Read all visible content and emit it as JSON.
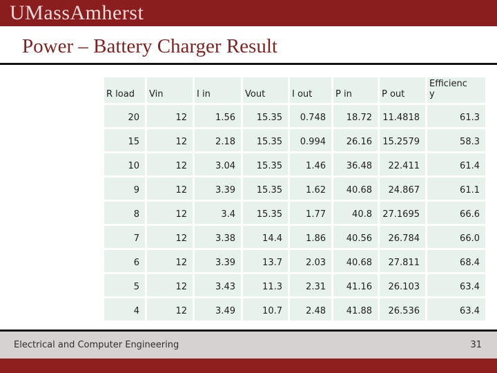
{
  "slide": {
    "logo_text": "UMassAmherst",
    "title": "Power – Battery Charger Result",
    "footer_left": "Electrical and Computer Engineering",
    "page_number": "31"
  },
  "colors": {
    "banner_maroon": "#8a1d1d",
    "footer_maroon": "#8f1f1f",
    "title_maroon": "#7e2523",
    "logo_pink": "#f2d9d9",
    "divider_black": "#141414",
    "table_cell_bg": "#e8f2ec",
    "table_gridline": "#ffffff",
    "footer_gray": "#d7d2d2"
  },
  "table": {
    "headers": [
      "R load",
      "Vin",
      "I in",
      "Vout",
      "I out",
      "P in",
      "P out",
      "Efficienc\ny"
    ],
    "rows": [
      [
        "20",
        "12",
        "1.56",
        "15.35",
        "0.748",
        "18.72",
        "11.4818",
        "61.3"
      ],
      [
        "15",
        "12",
        "2.18",
        "15.35",
        "0.994",
        "26.16",
        "15.2579",
        "58.3"
      ],
      [
        "10",
        "12",
        "3.04",
        "15.35",
        "1.46",
        "36.48",
        "22.411",
        "61.4"
      ],
      [
        "9",
        "12",
        "3.39",
        "15.35",
        "1.62",
        "40.68",
        "24.867",
        "61.1"
      ],
      [
        "8",
        "12",
        "3.4",
        "15.35",
        "1.77",
        "40.8",
        "27.1695",
        "66.6"
      ],
      [
        "7",
        "12",
        "3.38",
        "14.4",
        "1.86",
        "40.56",
        "26.784",
        "66.0"
      ],
      [
        "6",
        "12",
        "3.39",
        "13.7",
        "2.03",
        "40.68",
        "27.811",
        "68.4"
      ],
      [
        "5",
        "12",
        "3.43",
        "11.3",
        "2.31",
        "41.16",
        "26.103",
        "63.4"
      ],
      [
        "4",
        "12",
        "3.49",
        "10.7",
        "2.48",
        "41.88",
        "26.536",
        "63.4"
      ]
    ]
  }
}
